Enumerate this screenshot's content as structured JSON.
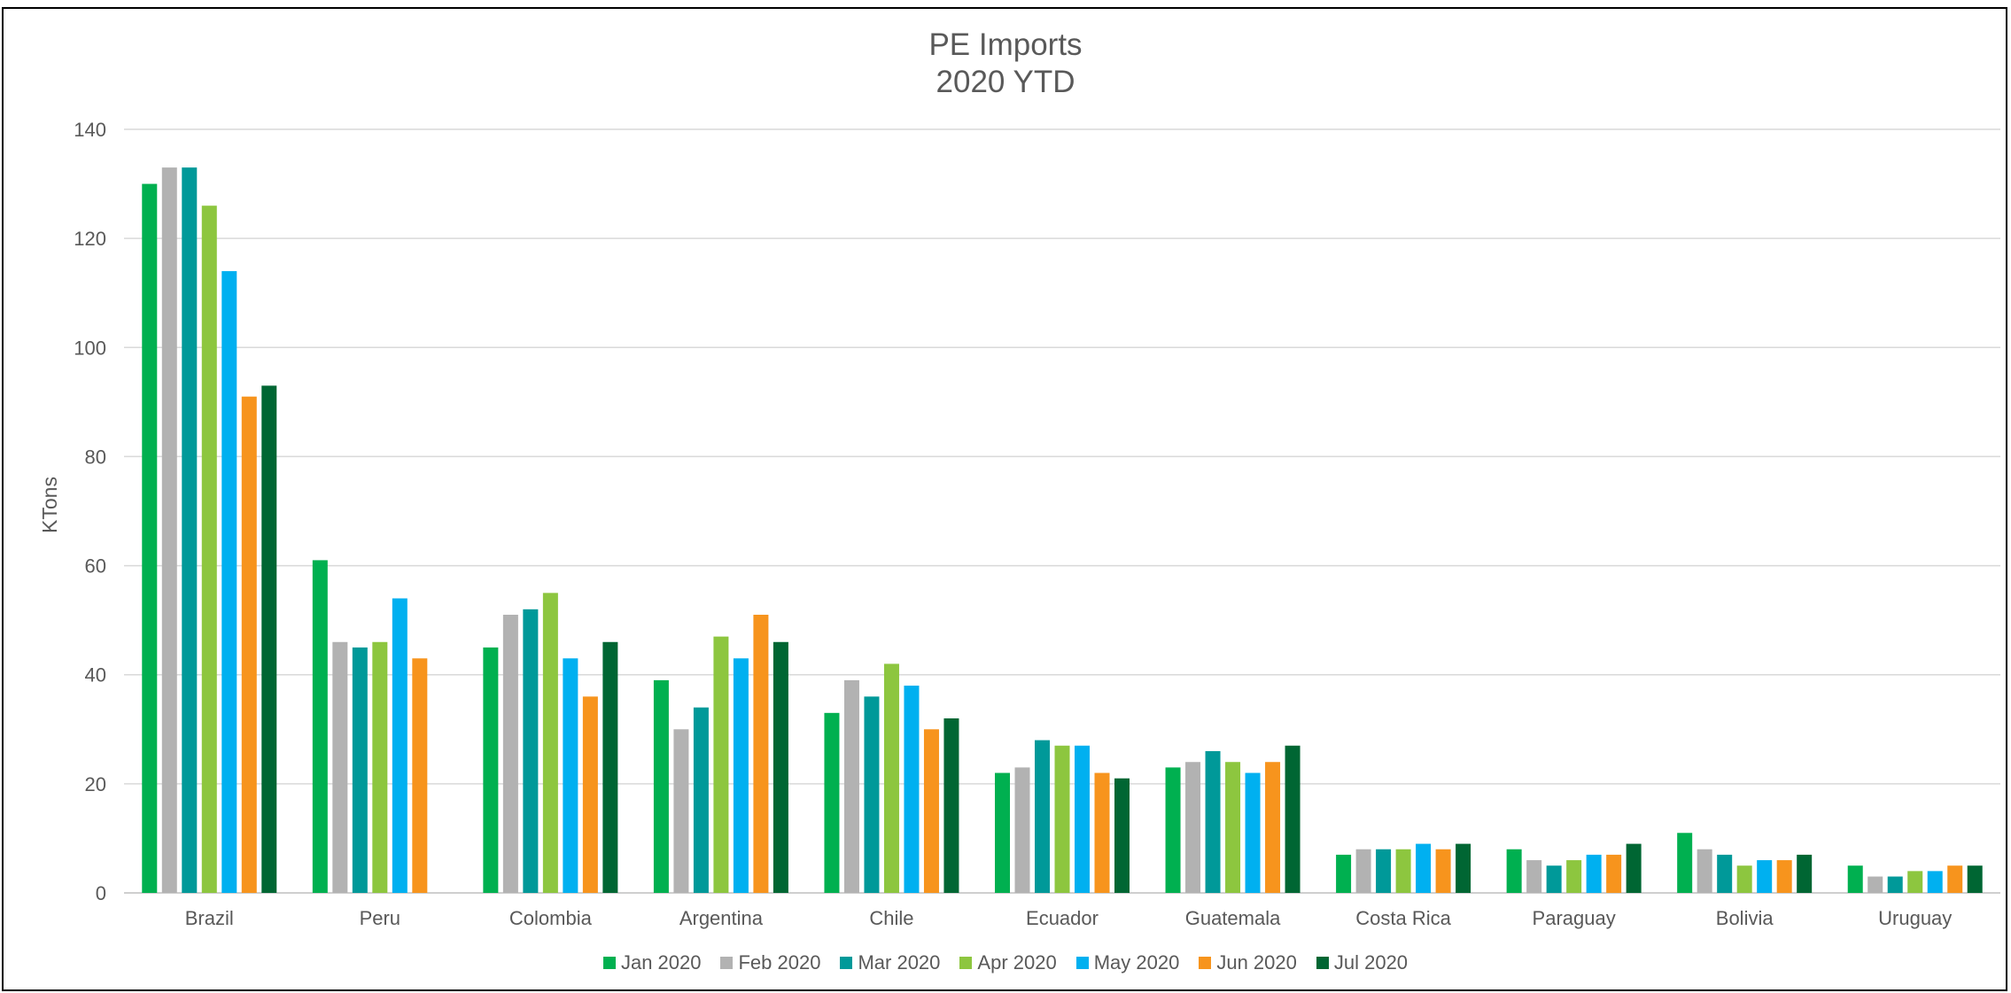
{
  "chart_data": {
    "type": "bar",
    "title": "PE Imports",
    "subtitle": "2020 YTD",
    "xlabel": "",
    "ylabel": "KTons",
    "ylim": [
      0,
      140
    ],
    "yticks": [
      "0",
      "20",
      "40",
      "60",
      "80",
      "100",
      "120",
      "140"
    ],
    "grid": true,
    "legend_position": "bottom",
    "categories": [
      "Brazil",
      "Peru",
      "Colombia",
      "Argentina",
      "Chile",
      "Ecuador",
      "Guatemala",
      "Costa Rica",
      "Paraguay",
      "Bolivia",
      "Uruguay"
    ],
    "series": [
      {
        "name": "Jan 2020",
        "color": "#00b050",
        "values": [
          130,
          61,
          45,
          39,
          33,
          22,
          23,
          7,
          8,
          11,
          5
        ]
      },
      {
        "name": "Feb 2020",
        "color": "#b2b2b2",
        "values": [
          133,
          46,
          51,
          30,
          39,
          23,
          24,
          8,
          6,
          8,
          3
        ]
      },
      {
        "name": "Mar 2020",
        "color": "#009999",
        "values": [
          133,
          45,
          52,
          34,
          36,
          28,
          26,
          8,
          5,
          7,
          3
        ]
      },
      {
        "name": "Apr 2020",
        "color": "#8dc63f",
        "values": [
          126,
          46,
          55,
          47,
          42,
          27,
          24,
          8,
          6,
          5,
          4
        ]
      },
      {
        "name": "May 2020",
        "color": "#00b0f0",
        "values": [
          114,
          54,
          43,
          43,
          38,
          27,
          22,
          9,
          7,
          6,
          4
        ]
      },
      {
        "name": "Jun 2020",
        "color": "#f7941d",
        "values": [
          91,
          43,
          36,
          51,
          30,
          22,
          24,
          8,
          7,
          6,
          5
        ]
      },
      {
        "name": "Jul 2020",
        "color": "#006633",
        "values": [
          93,
          null,
          46,
          46,
          32,
          21,
          27,
          9,
          9,
          7,
          5
        ]
      }
    ]
  }
}
